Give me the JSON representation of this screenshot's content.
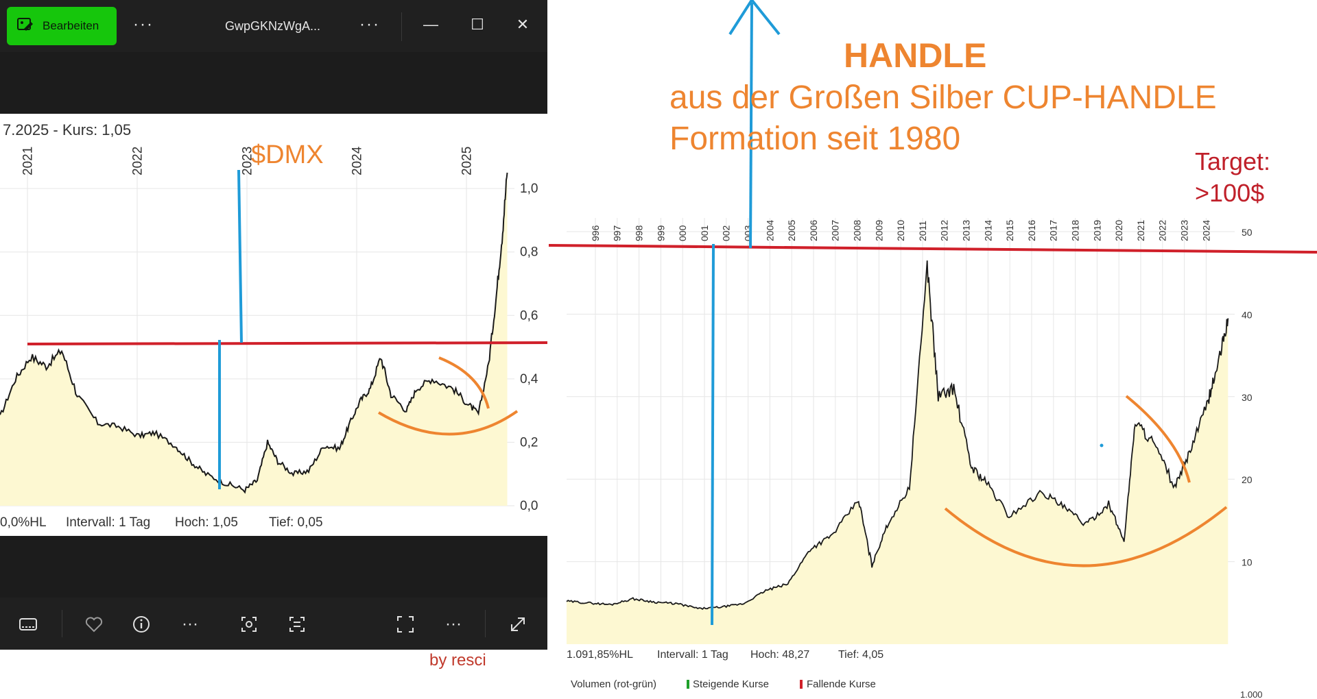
{
  "viewer": {
    "edit_label": "Bearbeiten",
    "file_name": "GwpGKNzWgA...",
    "more_glyph": "···",
    "minimize_glyph": "—",
    "maximize_glyph": "☐",
    "close_glyph": "✕"
  },
  "left_chart_text": {
    "header": "7.2025  - Kurs: 1,05",
    "ticker_label": "$DMX",
    "footer_hl": "0,0%HL",
    "footer_interval": "Intervall: 1 Tag",
    "footer_hoch": "Hoch:  1,05",
    "footer_tief": "Tief:  0,05"
  },
  "right_annotation": {
    "handle_title": "HANDLE",
    "subtitle_line1": "aus der Großen Silber CUP-HANDLE",
    "subtitle_line2": "Formation seit 1980",
    "target_line1": "Target:",
    "target_line2": ">100$"
  },
  "right_chart_text": {
    "footer_hl": "1.091,85%HL",
    "footer_interval": "Intervall: 1 Tag",
    "footer_hoch": "Hoch:  48,27",
    "footer_tief": "Tief:  4,05",
    "volume_label": "Volumen (rot-grün)",
    "legend_up": "Steigende Kurse",
    "legend_down": "Fallende Kurse",
    "volume_axis_label": "1.000"
  },
  "credit": "by resci",
  "colors": {
    "edit_green": "#16c60c",
    "price_line": "#1a1a1a",
    "area_fill": "#fdf8d2",
    "resistance_red": "#d0202a",
    "annotation_orange": "#ee8530",
    "marker_blue": "#1f9bd8",
    "target_red": "#c0202a"
  },
  "chart_data": [
    {
      "type": "area",
      "title": "$DMX",
      "x_ticks": [
        "2021",
        "2022",
        "2023",
        "2024",
        "2025"
      ],
      "y_ticks": [
        "0,0",
        "0,2",
        "0,4",
        "0,6",
        "0,8",
        "1,0"
      ],
      "ylim": [
        0,
        1.05
      ],
      "last_price": 1.05,
      "high": 1.05,
      "low": 0.05,
      "points": [
        {
          "x": 2020.6,
          "y": 0.28
        },
        {
          "x": 2020.75,
          "y": 0.4
        },
        {
          "x": 2020.9,
          "y": 0.47
        },
        {
          "x": 2021.05,
          "y": 0.44
        },
        {
          "x": 2021.2,
          "y": 0.49
        },
        {
          "x": 2021.35,
          "y": 0.35
        },
        {
          "x": 2021.55,
          "y": 0.26
        },
        {
          "x": 2021.75,
          "y": 0.25
        },
        {
          "x": 2021.95,
          "y": 0.22
        },
        {
          "x": 2022.1,
          "y": 0.23
        },
        {
          "x": 2022.3,
          "y": 0.19
        },
        {
          "x": 2022.45,
          "y": 0.14
        },
        {
          "x": 2022.6,
          "y": 0.1
        },
        {
          "x": 2022.8,
          "y": 0.07
        },
        {
          "x": 2022.98,
          "y": 0.05
        },
        {
          "x": 2023.1,
          "y": 0.08
        },
        {
          "x": 2023.2,
          "y": 0.2
        },
        {
          "x": 2023.3,
          "y": 0.14
        },
        {
          "x": 2023.45,
          "y": 0.1
        },
        {
          "x": 2023.6,
          "y": 0.11
        },
        {
          "x": 2023.75,
          "y": 0.19
        },
        {
          "x": 2023.9,
          "y": 0.18
        },
        {
          "x": 2024.0,
          "y": 0.26
        },
        {
          "x": 2024.1,
          "y": 0.33
        },
        {
          "x": 2024.2,
          "y": 0.37
        },
        {
          "x": 2024.3,
          "y": 0.47
        },
        {
          "x": 2024.4,
          "y": 0.35
        },
        {
          "x": 2024.55,
          "y": 0.3
        },
        {
          "x": 2024.65,
          "y": 0.37
        },
        {
          "x": 2024.8,
          "y": 0.4
        },
        {
          "x": 2025.0,
          "y": 0.37
        },
        {
          "x": 2025.15,
          "y": 0.32
        },
        {
          "x": 2025.25,
          "y": 0.29
        },
        {
          "x": 2025.35,
          "y": 0.45
        },
        {
          "x": 2025.42,
          "y": 0.65
        },
        {
          "x": 2025.48,
          "y": 0.85
        },
        {
          "x": 2025.53,
          "y": 1.05
        }
      ]
    },
    {
      "type": "area",
      "title": "",
      "x_ticks": [
        "996",
        "997",
        "998",
        "999",
        "000",
        "001",
        "002",
        "003",
        "2004",
        "2005",
        "2006",
        "2007",
        "2008",
        "2009",
        "2010",
        "2011",
        "2012",
        "2013",
        "2014",
        "2015",
        "2016",
        "2017",
        "2018",
        "2019",
        "2020",
        "2021",
        "2022",
        "2023",
        "2024"
      ],
      "y_ticks": [
        "10",
        "20",
        "30",
        "40",
        "50"
      ],
      "ylim": [
        0,
        50
      ],
      "high": 48.27,
      "low": 4.05,
      "points": [
        {
          "x": 1995.0,
          "y": 5.2
        },
        {
          "x": 1996.0,
          "y": 5.0
        },
        {
          "x": 1997.0,
          "y": 4.8
        },
        {
          "x": 1998.0,
          "y": 5.5
        },
        {
          "x": 1999.0,
          "y": 5.1
        },
        {
          "x": 2000.0,
          "y": 4.9
        },
        {
          "x": 2001.0,
          "y": 4.3
        },
        {
          "x": 2002.0,
          "y": 4.5
        },
        {
          "x": 2003.0,
          "y": 4.9
        },
        {
          "x": 2004.0,
          "y": 6.5
        },
        {
          "x": 2005.0,
          "y": 7.3
        },
        {
          "x": 2006.0,
          "y": 11.5
        },
        {
          "x": 2007.0,
          "y": 13.2
        },
        {
          "x": 2008.2,
          "y": 17.5
        },
        {
          "x": 2008.8,
          "y": 9.5
        },
        {
          "x": 2009.5,
          "y": 14.5
        },
        {
          "x": 2010.5,
          "y": 19.0
        },
        {
          "x": 2011.3,
          "y": 46.0
        },
        {
          "x": 2011.8,
          "y": 30.0
        },
        {
          "x": 2012.5,
          "y": 31.0
        },
        {
          "x": 2013.3,
          "y": 21.5
        },
        {
          "x": 2014.0,
          "y": 19.5
        },
        {
          "x": 2015.0,
          "y": 15.5
        },
        {
          "x": 2016.5,
          "y": 18.5
        },
        {
          "x": 2017.5,
          "y": 16.5
        },
        {
          "x": 2018.5,
          "y": 14.5
        },
        {
          "x": 2019.5,
          "y": 17.0
        },
        {
          "x": 2020.2,
          "y": 12.5
        },
        {
          "x": 2020.7,
          "y": 27.0
        },
        {
          "x": 2021.5,
          "y": 24.5
        },
        {
          "x": 2022.5,
          "y": 19.0
        },
        {
          "x": 2023.2,
          "y": 23.5
        },
        {
          "x": 2024.0,
          "y": 29.5
        },
        {
          "x": 2024.5,
          "y": 34.5
        },
        {
          "x": 2024.9,
          "y": 39.5
        }
      ]
    }
  ]
}
